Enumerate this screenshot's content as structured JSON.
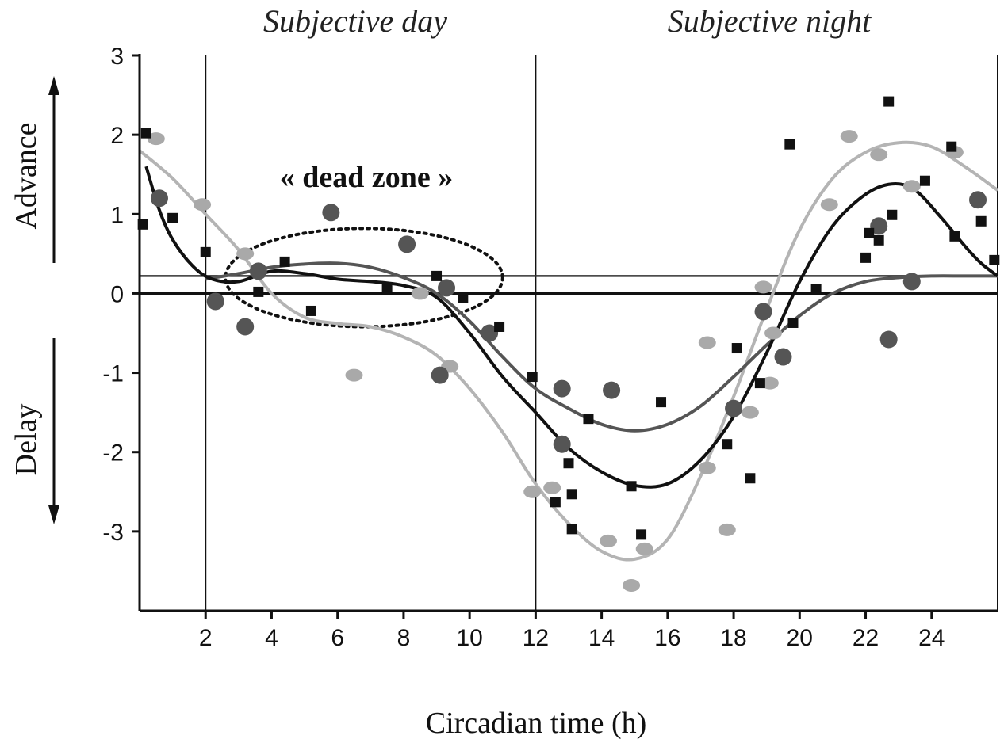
{
  "chart_data": {
    "type": "scatter",
    "title": "",
    "xlabel": "Circadian time (h)",
    "ylabel_top": "Advance",
    "ylabel_bottom": "Delay",
    "xlim": [
      0,
      26
    ],
    "ylim": [
      -4,
      3
    ],
    "x_ticks": [
      2,
      4,
      6,
      8,
      10,
      12,
      14,
      16,
      18,
      20,
      22,
      24
    ],
    "y_ticks": [
      3,
      2,
      1,
      0,
      -1,
      -2,
      -3
    ],
    "y_tick_labels": [
      "3",
      "2",
      "1",
      "0",
      "-1",
      "-2",
      "-3"
    ],
    "vlines": [
      2,
      12
    ],
    "region_labels": [
      "Subjective day",
      "Subjective night"
    ],
    "annotation": "« dead zone »",
    "series": [
      {
        "name": "light-gray-ellipses",
        "marker": "ellipse",
        "color": "#a9a9a9",
        "points": [
          [
            0.5,
            1.95
          ],
          [
            1.9,
            1.12
          ],
          [
            3.2,
            0.5
          ],
          [
            6.5,
            -1.03
          ],
          [
            8.5,
            0.0
          ],
          [
            9.4,
            -0.92
          ],
          [
            11.9,
            -2.5
          ],
          [
            12.5,
            -2.45
          ],
          [
            14.2,
            -3.12
          ],
          [
            14.9,
            -3.68
          ],
          [
            15.3,
            -3.22
          ],
          [
            17.2,
            -0.62
          ],
          [
            17.2,
            -2.2
          ],
          [
            17.8,
            -2.98
          ],
          [
            18.5,
            -1.5
          ],
          [
            18.9,
            0.08
          ],
          [
            19.1,
            -1.13
          ],
          [
            19.2,
            -0.5
          ],
          [
            20.9,
            1.12
          ],
          [
            21.5,
            1.98
          ],
          [
            22.4,
            1.75
          ],
          [
            23.4,
            1.35
          ],
          [
            24.7,
            1.78
          ]
        ]
      },
      {
        "name": "dark-gray-circles",
        "marker": "circle",
        "color": "#555555",
        "points": [
          [
            0.6,
            1.2
          ],
          [
            2.3,
            -0.1
          ],
          [
            3.2,
            -0.42
          ],
          [
            3.6,
            0.28
          ],
          [
            5.8,
            1.02
          ],
          [
            8.1,
            0.62
          ],
          [
            9.1,
            -1.03
          ],
          [
            9.3,
            0.07
          ],
          [
            10.6,
            -0.5
          ],
          [
            12.8,
            -1.2
          ],
          [
            12.8,
            -1.9
          ],
          [
            14.3,
            -1.22
          ],
          [
            18.0,
            -1.45
          ],
          [
            18.9,
            -0.23
          ],
          [
            19.5,
            -0.8
          ],
          [
            22.4,
            0.85
          ],
          [
            22.7,
            -0.58
          ],
          [
            23.4,
            0.15
          ],
          [
            25.4,
            1.18
          ]
        ]
      },
      {
        "name": "black-squares",
        "marker": "square",
        "color": "#111111",
        "points": [
          [
            0.1,
            0.87
          ],
          [
            0.2,
            2.02
          ],
          [
            1.0,
            0.95
          ],
          [
            2.0,
            0.52
          ],
          [
            3.6,
            0.02
          ],
          [
            4.4,
            0.4
          ],
          [
            5.2,
            -0.22
          ],
          [
            7.5,
            0.05
          ],
          [
            9.0,
            0.22
          ],
          [
            9.8,
            -0.06
          ],
          [
            10.9,
            -0.42
          ],
          [
            11.9,
            -1.05
          ],
          [
            12.6,
            -2.63
          ],
          [
            13.0,
            -2.14
          ],
          [
            13.1,
            -2.97
          ],
          [
            13.1,
            -2.53
          ],
          [
            13.6,
            -1.58
          ],
          [
            14.9,
            -2.43
          ],
          [
            15.2,
            -3.04
          ],
          [
            15.8,
            -1.37
          ],
          [
            17.8,
            -1.9
          ],
          [
            18.1,
            -0.69
          ],
          [
            18.5,
            -2.33
          ],
          [
            18.8,
            -1.13
          ],
          [
            19.7,
            1.88
          ],
          [
            19.8,
            -0.37
          ],
          [
            20.5,
            0.05
          ],
          [
            22.0,
            0.45
          ],
          [
            22.1,
            0.76
          ],
          [
            22.4,
            0.67
          ],
          [
            22.7,
            2.42
          ],
          [
            22.8,
            0.99
          ],
          [
            23.8,
            1.42
          ],
          [
            24.6,
            1.85
          ],
          [
            24.7,
            0.72
          ],
          [
            25.5,
            0.91
          ],
          [
            25.9,
            0.42
          ]
        ]
      }
    ],
    "curves": [
      {
        "name": "light-gray-fit",
        "color": "#b4b4b4",
        "width": 4,
        "points": [
          [
            0,
            1.8
          ],
          [
            1,
            1.45
          ],
          [
            2,
            1.0
          ],
          [
            3,
            0.55
          ],
          [
            4,
            0.0
          ],
          [
            5,
            -0.3
          ],
          [
            6,
            -0.38
          ],
          [
            7,
            -0.42
          ],
          [
            8,
            -0.55
          ],
          [
            9,
            -0.78
          ],
          [
            10,
            -1.2
          ],
          [
            11,
            -1.75
          ],
          [
            12,
            -2.4
          ],
          [
            13,
            -2.9
          ],
          [
            14,
            -3.25
          ],
          [
            15,
            -3.35
          ],
          [
            16,
            -3.1
          ],
          [
            17,
            -2.3
          ],
          [
            18,
            -1.3
          ],
          [
            19,
            -0.2
          ],
          [
            20,
            0.8
          ],
          [
            21,
            1.45
          ],
          [
            22,
            1.78
          ],
          [
            23,
            1.9
          ],
          [
            24,
            1.85
          ],
          [
            25,
            1.6
          ],
          [
            26,
            1.3
          ]
        ]
      },
      {
        "name": "dark-gray-fit",
        "color": "#555555",
        "width": 4,
        "points": [
          [
            2,
            0.18
          ],
          [
            3,
            0.25
          ],
          [
            4,
            0.33
          ],
          [
            5,
            0.37
          ],
          [
            6,
            0.38
          ],
          [
            7,
            0.33
          ],
          [
            8,
            0.2
          ],
          [
            9,
            0.0
          ],
          [
            10,
            -0.35
          ],
          [
            11,
            -0.8
          ],
          [
            12,
            -1.2
          ],
          [
            13,
            -1.45
          ],
          [
            14,
            -1.65
          ],
          [
            15,
            -1.73
          ],
          [
            16,
            -1.65
          ],
          [
            17,
            -1.42
          ],
          [
            18,
            -1.05
          ],
          [
            19,
            -0.65
          ],
          [
            20,
            -0.28
          ],
          [
            21,
            0.0
          ],
          [
            22,
            0.15
          ],
          [
            23,
            0.2
          ],
          [
            24,
            0.22
          ],
          [
            25,
            0.22
          ],
          [
            26,
            0.22
          ]
        ]
      },
      {
        "name": "black-fit",
        "color": "#111111",
        "width": 4,
        "points": [
          [
            0.2,
            1.6
          ],
          [
            0.6,
            1.05
          ],
          [
            1.0,
            0.68
          ],
          [
            1.6,
            0.35
          ],
          [
            2.2,
            0.18
          ],
          [
            3,
            0.15
          ],
          [
            4,
            0.28
          ],
          [
            5,
            0.25
          ],
          [
            6,
            0.18
          ],
          [
            7,
            0.15
          ],
          [
            8,
            0.1
          ],
          [
            9,
            -0.05
          ],
          [
            10,
            -0.5
          ],
          [
            11,
            -1.05
          ],
          [
            12,
            -1.5
          ],
          [
            13,
            -1.95
          ],
          [
            14,
            -2.25
          ],
          [
            15,
            -2.42
          ],
          [
            16,
            -2.4
          ],
          [
            17,
            -2.1
          ],
          [
            18,
            -1.55
          ],
          [
            19,
            -0.75
          ],
          [
            20,
            0.15
          ],
          [
            21,
            0.85
          ],
          [
            22,
            1.25
          ],
          [
            22.8,
            1.38
          ],
          [
            23.5,
            1.3
          ],
          [
            24.3,
            0.95
          ],
          [
            25,
            0.6
          ],
          [
            25.5,
            0.38
          ],
          [
            26,
            0.22
          ]
        ]
      }
    ],
    "hlines": [
      {
        "name": "zero-line",
        "y": 0.0,
        "color": "#111111",
        "width": 4
      },
      {
        "name": "baseline-line",
        "y": 0.22,
        "color": "#333333",
        "width": 2.5
      }
    ],
    "dead_zone_region": {
      "x_center": 6.8,
      "y_center": 0.2,
      "x_radius": 4.2,
      "y_radius": 0.62
    }
  }
}
